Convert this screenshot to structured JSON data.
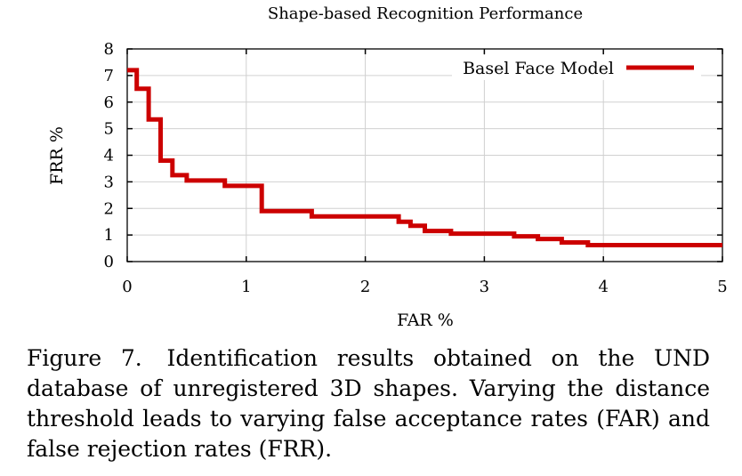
{
  "chart_data": {
    "type": "line",
    "title": "Shape-based Recognition Performance",
    "xlabel": "FAR %",
    "ylabel": "FRR %",
    "xlim": [
      0,
      5
    ],
    "ylim": [
      0,
      8
    ],
    "x_ticks": [
      "0",
      "1",
      "2",
      "3",
      "4",
      "5"
    ],
    "y_ticks": [
      "0",
      "1",
      "2",
      "3",
      "4",
      "5",
      "6",
      "7",
      "8"
    ],
    "grid": true,
    "legend_position": "top-right",
    "series_color": "#cc0000",
    "series": [
      {
        "name": "Basel Face Model",
        "x": [
          0.0,
          0.08,
          0.08,
          0.18,
          0.18,
          0.28,
          0.28,
          0.38,
          0.38,
          0.5,
          0.5,
          0.82,
          0.82,
          1.13,
          1.13,
          1.55,
          1.55,
          2.28,
          2.28,
          2.38,
          2.38,
          2.5,
          2.5,
          2.72,
          2.72,
          3.25,
          3.25,
          3.45,
          3.45,
          3.65,
          3.65,
          3.87,
          3.87,
          5.0
        ],
        "y": [
          7.2,
          7.2,
          6.5,
          6.5,
          5.35,
          5.35,
          3.8,
          3.8,
          3.25,
          3.25,
          3.05,
          3.05,
          2.85,
          2.85,
          1.9,
          1.9,
          1.7,
          1.7,
          1.5,
          1.5,
          1.35,
          1.35,
          1.15,
          1.15,
          1.05,
          1.05,
          0.95,
          0.95,
          0.85,
          0.85,
          0.72,
          0.72,
          0.62,
          0.62
        ]
      }
    ]
  },
  "caption": {
    "label": "Figure 7.",
    "text": "Identification results obtained on the UND database of unregistered 3D shapes. Varying the distance threshold leads to varying false acceptance rates (FAR) and false rejection rates (FRR)."
  }
}
